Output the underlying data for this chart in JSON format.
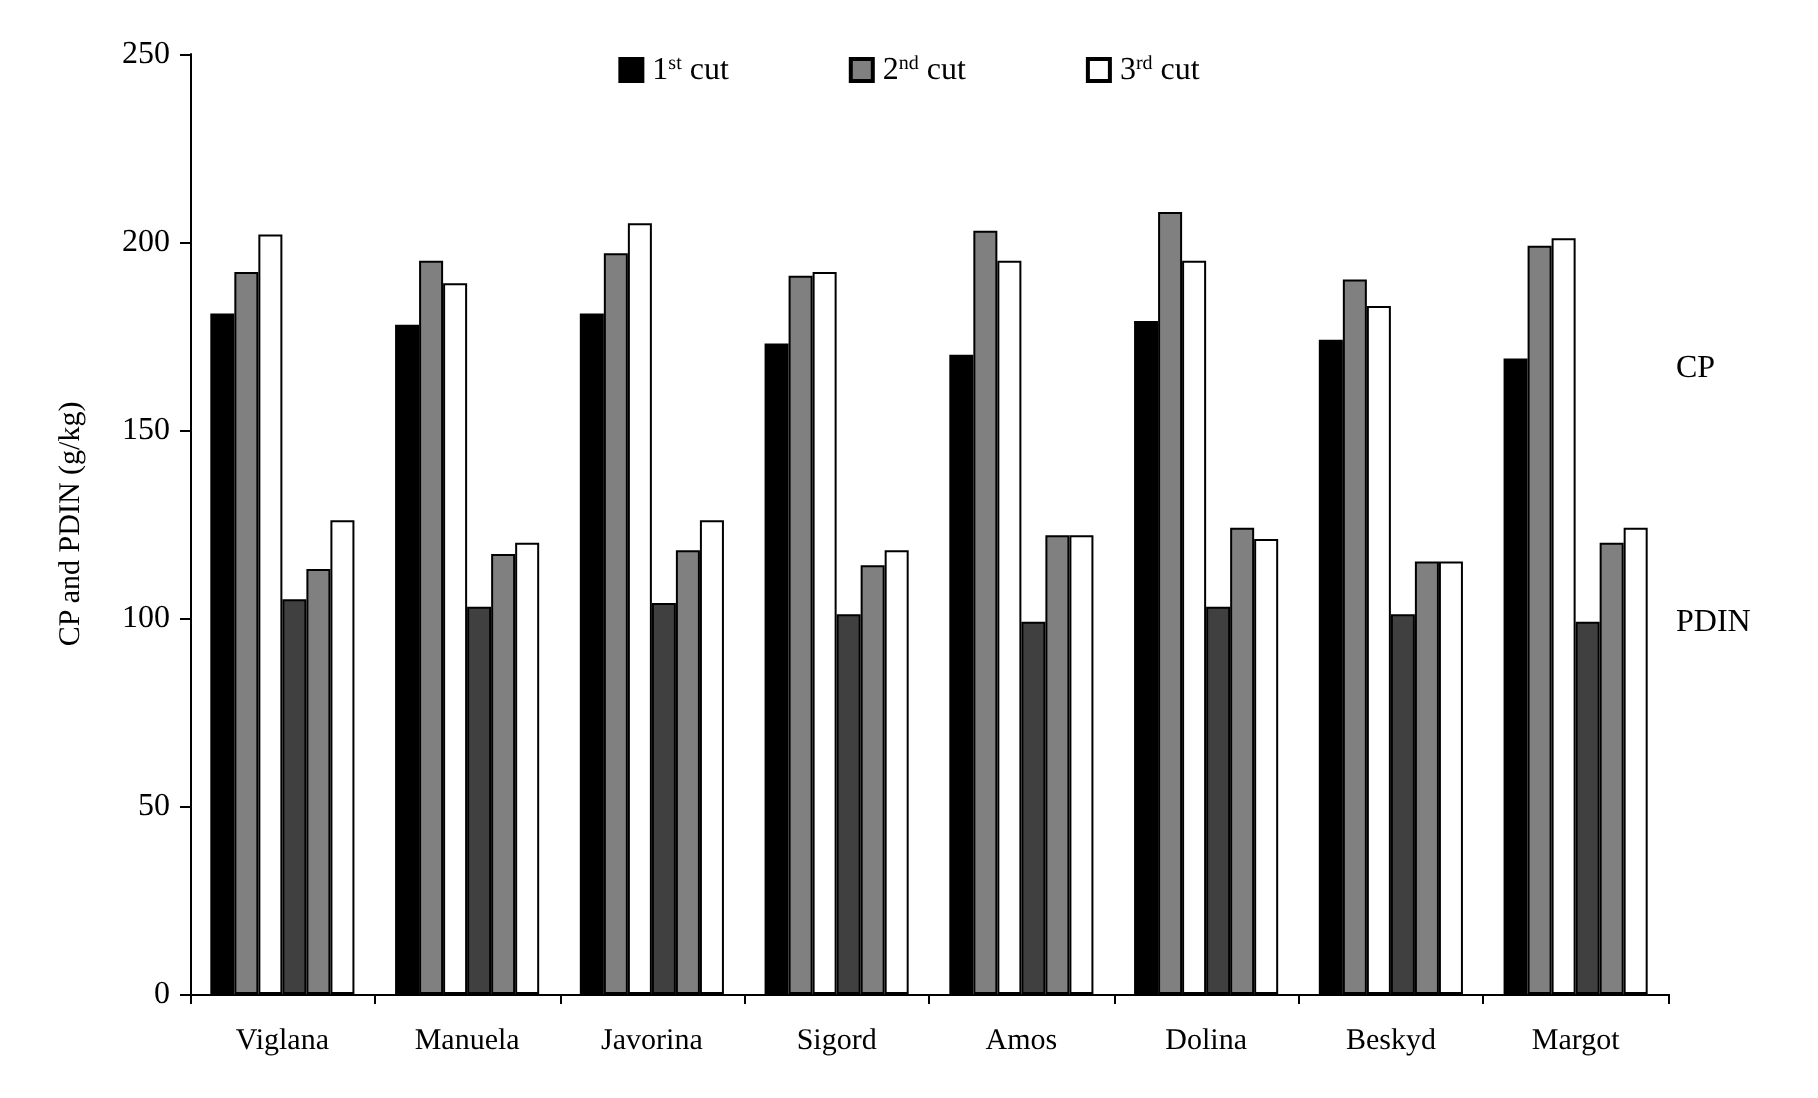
{
  "chart_data": {
    "type": "bar",
    "ylabel": "CP and PDIN (g/kg)",
    "categories": [
      "Viglana",
      "Manuela",
      "Javorina",
      "Sigord",
      "Amos",
      "Dolina",
      "Beskyd",
      "Margot"
    ],
    "series": [
      {
        "name": "1$^{st}$ cut",
        "color": "#000000",
        "values": [
          181,
          178,
          181,
          173,
          170,
          179,
          174,
          169
        ]
      },
      {
        "name": "2$^{nd}$ cut",
        "color": "#808080",
        "values": [
          192,
          195,
          197,
          191,
          203,
          208,
          190,
          199
        ]
      },
      {
        "name": "3$^{rd}$ cut",
        "color": "#ffffff",
        "values": [
          202,
          189,
          205,
          192,
          195,
          195,
          183,
          201
        ]
      },
      {
        "color": "#404040",
        "values": [
          105,
          103,
          104,
          101,
          99,
          103,
          101,
          99
        ]
      },
      {
        "color": "#808080",
        "values": [
          113,
          117,
          118,
          114,
          122,
          124,
          115,
          120
        ]
      },
      {
        "color": "#ffffff",
        "values": [
          126,
          120,
          126,
          118,
          122,
          121,
          115,
          124
        ]
      }
    ],
    "ylim": [
      0,
      250
    ],
    "yticks": [
      0,
      50,
      100,
      150,
      200,
      250
    ],
    "grid": false,
    "legend": "top",
    "annotations": [
      "CP",
      "PDIN"
    ]
  }
}
